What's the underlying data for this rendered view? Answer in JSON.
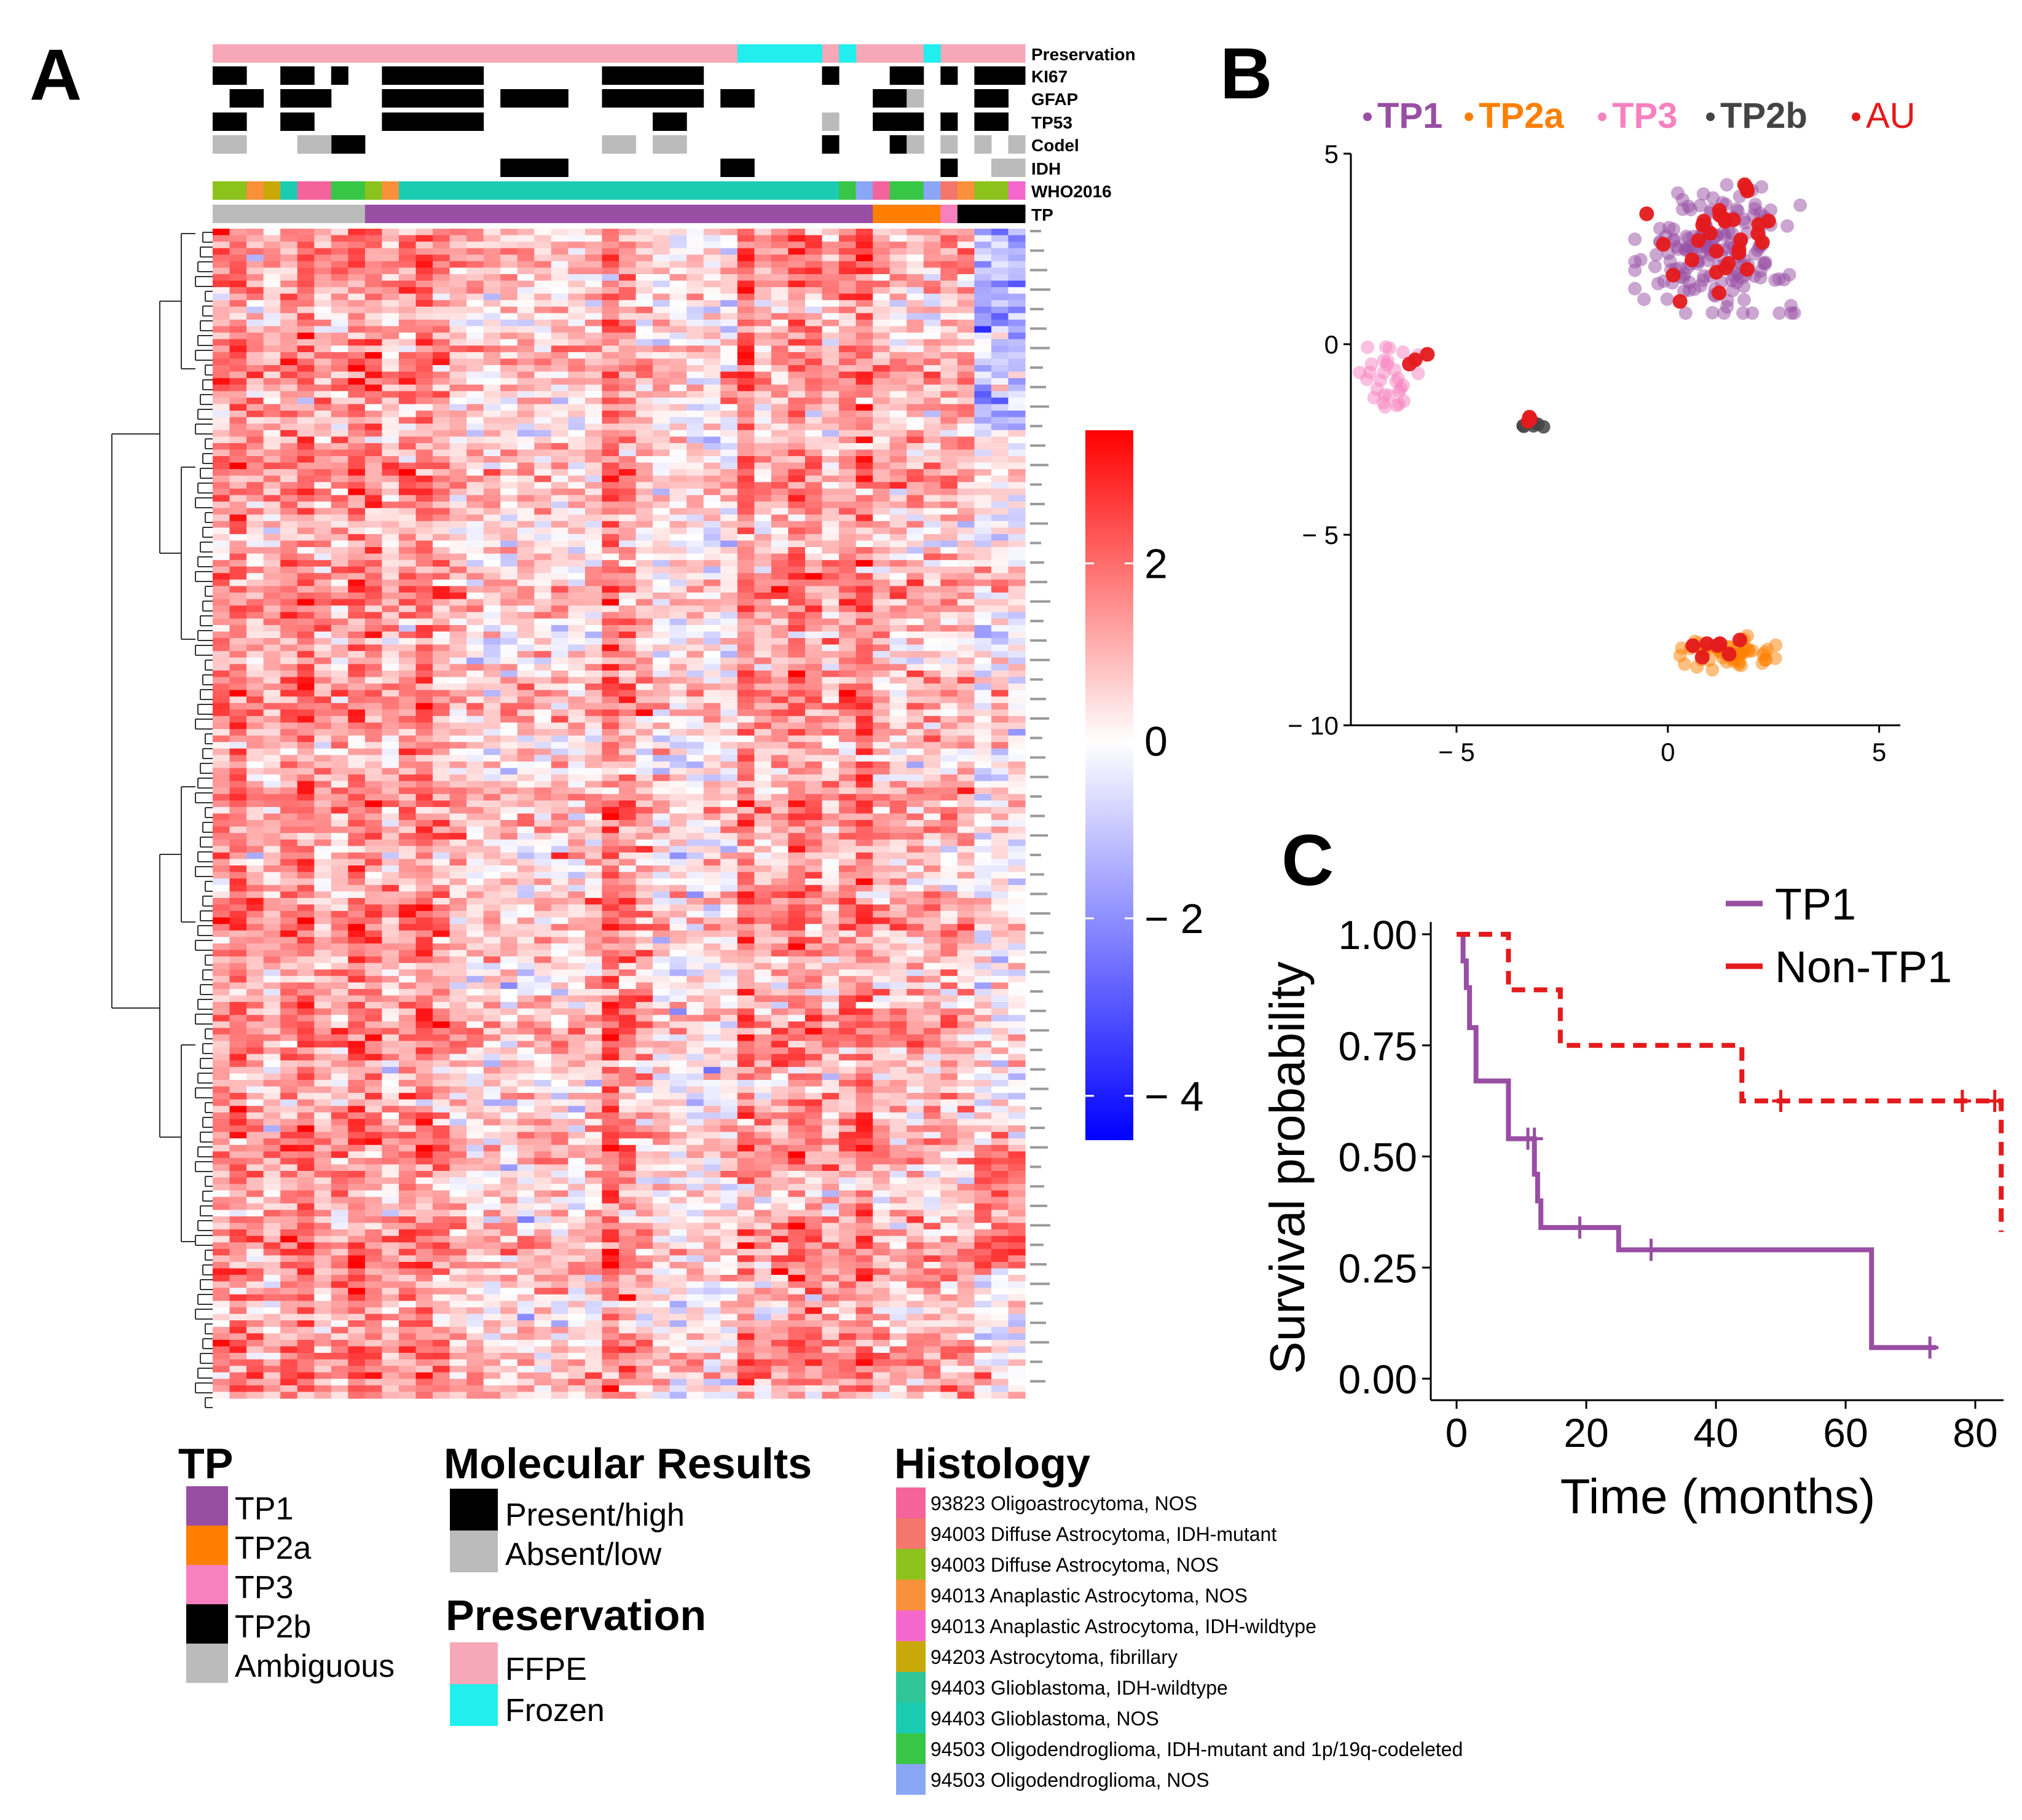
{
  "panels": {
    "a": "A",
    "b": "B",
    "c": "C"
  },
  "colors": {
    "tp1": "#984ea3",
    "tp2a": "#ff7f00",
    "tp3": "#f781bf",
    "tp2b": "#000000",
    "ambiguous": "#bbbbbb",
    "ffpe": "#f6a8b8",
    "frozen": "#22eeee",
    "present": "#000000",
    "absent": "#bbbbbb",
    "au": "#e41a1c"
  },
  "heatmap": {
    "annotation_labels": [
      "Preservation",
      "KI67",
      "GFAP",
      "TP53",
      "Codel",
      "IDH",
      "WHO2016",
      "TP"
    ],
    "colorbar_ticks": [
      "2",
      "0",
      "− 2",
      "− 4"
    ]
  },
  "legends": {
    "tp": {
      "title": "TP",
      "items": [
        "TP1",
        "TP2a",
        "TP3",
        "TP2b",
        "Ambiguous"
      ]
    },
    "molecular": {
      "title": "Molecular Results",
      "items": [
        "Present/high",
        "Absent/low"
      ]
    },
    "preservation": {
      "title": "Preservation",
      "items": [
        "FFPE",
        "Frozen"
      ]
    },
    "histology": {
      "title": "Histology",
      "items": [
        {
          "label": "93823  Oligoastrocytoma, NOS",
          "color": "#f4639c"
        },
        {
          "label": "94003  Diffuse Astrocytoma, IDH-mutant",
          "color": "#f4766c"
        },
        {
          "label": "94003  Diffuse Astrocytoma, NOS",
          "color": "#8cc21c"
        },
        {
          "label": "94013  Anaplastic Astrocytoma, NOS",
          "color": "#f8913a"
        },
        {
          "label": "94013 Anaplastic Astrocytoma, IDH-wildtype",
          "color": "#f567cc"
        },
        {
          "label": "94203  Astrocytoma, fibrillary",
          "color": "#c9a90a"
        },
        {
          "label": "94403  Glioblastoma, IDH-wildtype",
          "color": "#2fc596"
        },
        {
          "label": "94403  Glioblastoma, NOS",
          "color": "#1cccb2"
        },
        {
          "label": "94503  Oligodendroglioma, IDH-mutant and 1p/19q-codeleted",
          "color": "#38c646"
        },
        {
          "label": "94503  Oligodendroglioma, NOS",
          "color": "#8aa6f6"
        }
      ]
    }
  },
  "chart_data": [
    {
      "type": "heatmap",
      "panel": "A",
      "title": "",
      "value_range": [
        -4.5,
        3.5
      ],
      "colorbar_ticks": [
        2,
        0,
        -2,
        -4
      ],
      "n_samples": 48,
      "n_genes": 180,
      "annotations": [
        "Preservation",
        "KI67",
        "GFAP",
        "TP53",
        "Codel",
        "IDH",
        "WHO2016",
        "TP"
      ],
      "dendrogram": "rows"
    },
    {
      "type": "scatter",
      "panel": "B",
      "legend": [
        "TP1",
        "TP2a",
        "TP3",
        "TP2b",
        "AU"
      ],
      "legend_position": "top",
      "xlim": [
        -7.5,
        5.5
      ],
      "ylim": [
        -10,
        5
      ],
      "x_ticks": [
        -5,
        0,
        5
      ],
      "y_ticks": [
        5,
        0,
        -5,
        -10
      ],
      "x_tick_labels": [
        "− 5",
        "0",
        "5"
      ],
      "y_tick_labels": [
        "5",
        "0",
        "− 5",
        "− 10"
      ],
      "clusters": [
        {
          "name": "TP1",
          "center": [
            1.2,
            2.5
          ],
          "spread": [
            2.0,
            1.7
          ],
          "n": 170
        },
        {
          "name": "TP3",
          "center": [
            -6.6,
            -0.9
          ],
          "spread": [
            0.7,
            1.2
          ],
          "n": 30
        },
        {
          "name": "TP2a",
          "center": [
            1.3,
            -8.1
          ],
          "spread": [
            1.3,
            0.45
          ],
          "n": 55
        },
        {
          "name": "TP2b",
          "center": [
            -3.2,
            -2.1
          ],
          "spread": [
            0.3,
            0.2
          ],
          "n": 6
        },
        {
          "name": "AU",
          "groups": [
            [
              [
                1.2,
                2.6
              ],
              [
                1.9,
                1.6
              ],
              30
            ],
            [
              [
                -6.0,
                -0.4
              ],
              [
                0.5,
                0.5
              ],
              3
            ],
            [
              [
                -3.3,
                -2.0
              ],
              [
                0.2,
                0.15
              ],
              3
            ],
            [
              [
                1.5,
                -8.0
              ],
              [
                1.0,
                0.4
              ],
              7
            ]
          ]
        }
      ]
    },
    {
      "type": "line",
      "panel": "C",
      "xlabel": "Time (months)",
      "ylabel": "Survival probability",
      "xlim": [
        0,
        84
      ],
      "ylim": [
        0,
        1
      ],
      "x_ticks": [
        0,
        20,
        40,
        60,
        80
      ],
      "y_ticks": [
        "0.00",
        "0.25",
        "0.50",
        "0.75",
        "1.00"
      ],
      "legend_position": "top-right",
      "series": [
        {
          "name": "TP1",
          "style": "solid",
          "steps": [
            [
              0,
              1.0
            ],
            [
              1,
              0.94
            ],
            [
              1.5,
              0.88
            ],
            [
              2,
              0.79
            ],
            [
              3,
              0.67
            ],
            [
              8,
              0.54
            ],
            [
              12,
              0.46
            ],
            [
              12.5,
              0.4
            ],
            [
              13,
              0.34
            ],
            [
              25,
              0.29
            ],
            [
              64,
              0.07
            ],
            [
              74,
              0.07
            ]
          ],
          "censored": [
            [
              11,
              0.54
            ],
            [
              12,
              0.54
            ],
            [
              19,
              0.34
            ],
            [
              30,
              0.29
            ],
            [
              73,
              0.07
            ]
          ]
        },
        {
          "name": "Non-TP1",
          "style": "dashed",
          "steps": [
            [
              0,
              1.0
            ],
            [
              8,
              0.875
            ],
            [
              16,
              0.75
            ],
            [
              44,
              0.625
            ],
            [
              84,
              0.625
            ],
            [
              84,
              0.33
            ]
          ],
          "censored": [
            [
              50,
              0.625
            ],
            [
              78,
              0.625
            ],
            [
              83,
              0.625
            ]
          ]
        }
      ]
    }
  ]
}
